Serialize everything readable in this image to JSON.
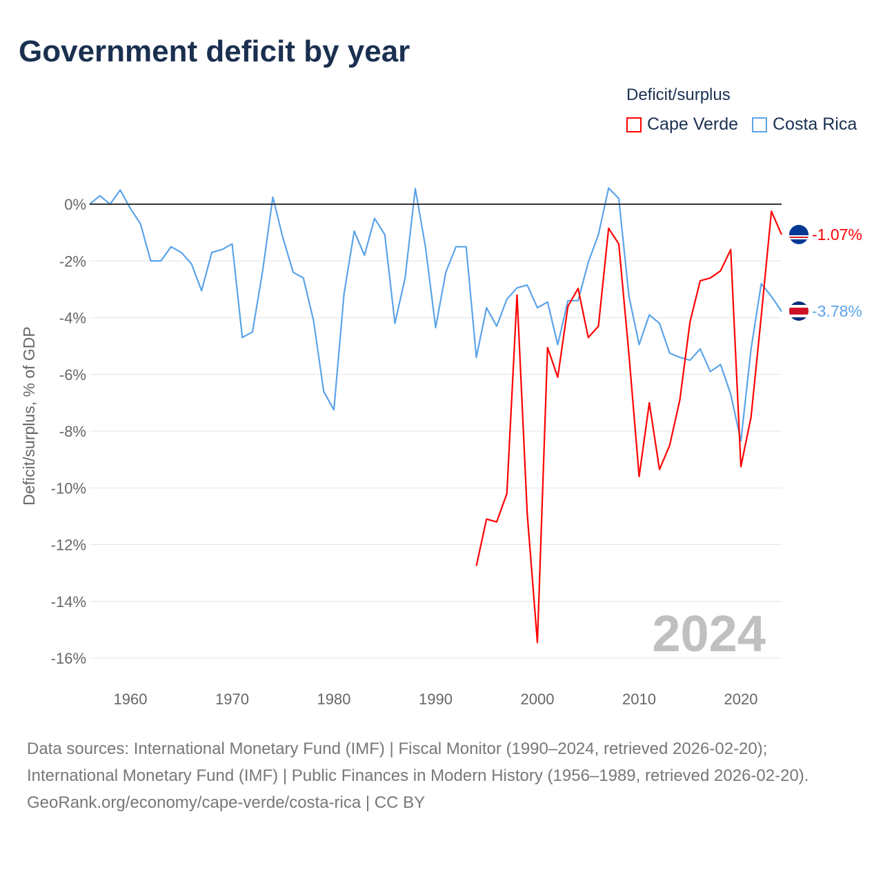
{
  "title": "Government deficit by year",
  "legend": {
    "title": "Deficit/surplus",
    "items": [
      {
        "name": "Cape Verde",
        "color": "#ff0000"
      },
      {
        "name": "Costa Rica",
        "color": "#5ba3e8"
      }
    ]
  },
  "year_label": "2024",
  "end_labels": {
    "cape_verde": "-1.07%",
    "costa_rica": "-3.78%"
  },
  "footer": {
    "sources": "Data sources: International Monetary Fund (IMF) | Fiscal Monitor (1990–2024, retrieved 2026-02-20); International Monetary Fund (IMF) | Public Finances in Modern History (1956–1989, retrieved 2026-02-20).",
    "link": "GeoRank.org/economy/cape-verde/costa-rica | CC BY"
  },
  "chart_data": {
    "type": "line",
    "title": "Government deficit by year",
    "xlabel": "",
    "ylabel": "Deficit/surplus, % of GDP",
    "xlim": [
      1956,
      2024
    ],
    "ylim": [
      -17,
      1
    ],
    "xticks": [
      1960,
      1970,
      1980,
      1990,
      2000,
      2010,
      2020
    ],
    "yticks": [
      0,
      -2,
      -4,
      -6,
      -8,
      -10,
      -12,
      -14,
      -16
    ],
    "ytick_labels": [
      "0%",
      "-2%",
      "-4%",
      "-6%",
      "-8%",
      "-10%",
      "-12%",
      "-14%",
      "-16%"
    ],
    "grid": true,
    "legend_position": "top-right",
    "series": [
      {
        "name": "Costa Rica",
        "color": "#5ba3e8",
        "start_year": 1956,
        "values": [
          0.0,
          0.3,
          0.0,
          0.5,
          -0.15,
          -0.7,
          -2.0,
          -2.0,
          -1.5,
          -1.7,
          -2.1,
          -3.05,
          -1.7,
          -1.6,
          -1.4,
          -4.7,
          -4.5,
          -2.35,
          0.25,
          -1.2,
          -2.4,
          -2.6,
          -4.1,
          -6.6,
          -7.25,
          -3.15,
          -0.95,
          -1.8,
          -0.5,
          -1.07,
          -4.2,
          -2.6,
          0.55,
          -1.5,
          -4.35,
          -2.4,
          -1.5,
          -1.5,
          -5.4,
          -3.65,
          -4.3,
          -3.35,
          -2.95,
          -2.85,
          -3.65,
          -3.45,
          -4.95,
          -3.4,
          -3.4,
          -2.05,
          -1.07,
          0.57,
          0.2,
          -3.25,
          -4.95,
          -3.9,
          -4.2,
          -5.25,
          -5.4,
          -5.5,
          -5.1,
          -5.9,
          -5.65,
          -6.7,
          -8.35,
          -5.1,
          -2.8,
          -3.25,
          -3.78
        ]
      },
      {
        "name": "Cape Verde",
        "color": "#ff0000",
        "start_year": 1994,
        "values": [
          -12.75,
          -11.1,
          -11.2,
          -10.2,
          -3.2,
          -10.9,
          -15.45,
          -5.05,
          -6.1,
          -3.6,
          -2.97,
          -4.7,
          -4.3,
          -0.85,
          -1.4,
          -5.3,
          -9.6,
          -7.0,
          -9.35,
          -8.5,
          -6.9,
          -4.15,
          -2.7,
          -2.6,
          -2.35,
          -1.6,
          -9.25,
          -7.5,
          -3.95,
          -0.25,
          -1.07
        ]
      }
    ]
  }
}
